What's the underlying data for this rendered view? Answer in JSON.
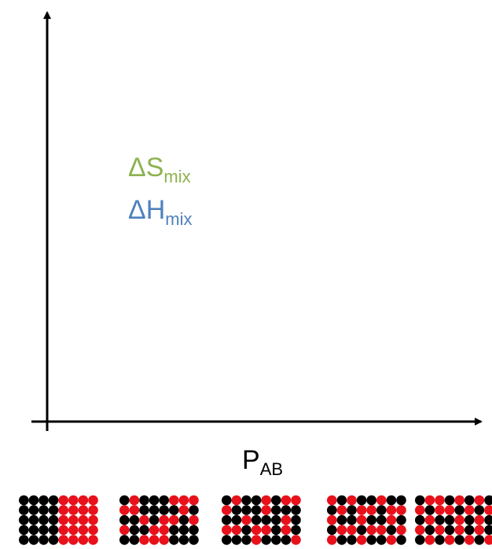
{
  "labels": {
    "entropy": {
      "main": "ΔS",
      "sub": "mix"
    },
    "enthalpy": {
      "main": "ΔH",
      "sub": "mix"
    },
    "x_axis": {
      "main": "P",
      "sub": "AB"
    }
  }
}
